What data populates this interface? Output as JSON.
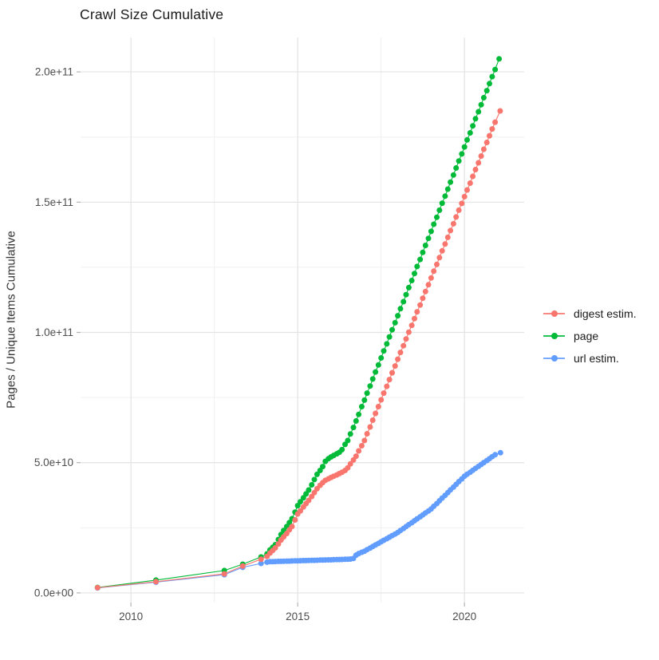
{
  "title": "Crawl Size Cumulative",
  "chart_data": {
    "type": "scatter",
    "title": "Crawl Size Cumulative",
    "xlabel": "",
    "ylabel": "Pages / Unique Items Cumulative",
    "values_unit": "billions (1e9) of pages / unique items",
    "grid": true,
    "legend_position": "right-center",
    "x_major_ticks": [
      2010,
      2015,
      2020
    ],
    "x_minor_ticks": [
      2012.5,
      2017.5
    ],
    "x_tick_labels": [
      "2010",
      "2015",
      "2020"
    ],
    "y_major_ticks_billions": [
      0,
      50,
      100,
      150,
      200
    ],
    "y_minor_ticks_billions": [
      25,
      75,
      125,
      175
    ],
    "y_tick_labels": [
      "0.0e+00",
      "5.0e+10",
      "1.0e+11",
      "1.5e+11",
      "2.0e+11"
    ],
    "xlim": [
      2008.49,
      2021.79
    ],
    "ylim_billions": [
      -3.7,
      213.2
    ],
    "colors": {
      "major_grid": "#e3e3e3",
      "minor_grid": "#f0f0f0",
      "tick": "#b3b3b3",
      "tick_label": "#4d4d4d",
      "title": "#1a1a1a"
    },
    "draw_order": [
      "url estim.",
      "page",
      "digest estim."
    ],
    "series": [
      {
        "name": "digest estim.",
        "color": "#F8766D",
        "points": [
          [
            2009.0,
            2.0
          ],
          [
            2010.75,
            4.3
          ],
          [
            2012.8,
            7.3
          ],
          [
            2013.35,
            10.3
          ],
          [
            2013.9,
            12.9
          ],
          [
            2014.08,
            14.0
          ],
          [
            2014.17,
            15.3
          ],
          [
            2014.25,
            16.3
          ],
          [
            2014.33,
            17.3
          ],
          [
            2014.42,
            18.8
          ],
          [
            2014.5,
            20.3
          ],
          [
            2014.58,
            21.5
          ],
          [
            2014.67,
            22.8
          ],
          [
            2014.75,
            24.2
          ],
          [
            2014.83,
            25.5
          ],
          [
            2014.92,
            28.0
          ],
          [
            2015.0,
            30.3
          ],
          [
            2015.08,
            31.5
          ],
          [
            2015.17,
            33.0
          ],
          [
            2015.25,
            34.3
          ],
          [
            2015.33,
            35.5
          ],
          [
            2015.42,
            37.0
          ],
          [
            2015.5,
            38.5
          ],
          [
            2015.58,
            40.0
          ],
          [
            2015.67,
            41.3
          ],
          [
            2015.75,
            42.3
          ],
          [
            2015.83,
            43.2
          ],
          [
            2015.92,
            43.8
          ],
          [
            2016.0,
            44.3
          ],
          [
            2016.08,
            44.8
          ],
          [
            2016.17,
            45.3
          ],
          [
            2016.25,
            45.8
          ],
          [
            2016.33,
            46.3
          ],
          [
            2016.42,
            47.0
          ],
          [
            2016.5,
            48.0
          ],
          [
            2016.58,
            49.5
          ],
          [
            2016.67,
            51.0
          ],
          [
            2016.75,
            52.5
          ],
          [
            2016.83,
            54.5
          ],
          [
            2016.92,
            56.5
          ],
          [
            2017.0,
            58.5
          ],
          [
            2017.08,
            61.1
          ],
          [
            2017.17,
            63.7
          ],
          [
            2017.25,
            66.3
          ],
          [
            2017.33,
            68.9
          ],
          [
            2017.42,
            71.5
          ],
          [
            2017.5,
            74.1
          ],
          [
            2017.58,
            76.7
          ],
          [
            2017.67,
            79.3
          ],
          [
            2017.75,
            81.9
          ],
          [
            2017.83,
            84.5
          ],
          [
            2017.92,
            87.1
          ],
          [
            2018.0,
            89.7
          ],
          [
            2018.08,
            92.3
          ],
          [
            2018.17,
            94.9
          ],
          [
            2018.25,
            97.5
          ],
          [
            2018.33,
            100.1
          ],
          [
            2018.42,
            102.7
          ],
          [
            2018.5,
            105.3
          ],
          [
            2018.58,
            107.9
          ],
          [
            2018.67,
            110.5
          ],
          [
            2018.75,
            113.1
          ],
          [
            2018.83,
            115.7
          ],
          [
            2018.92,
            118.3
          ],
          [
            2019.0,
            120.9
          ],
          [
            2019.08,
            123.5
          ],
          [
            2019.17,
            126.1
          ],
          [
            2019.25,
            128.7
          ],
          [
            2019.33,
            131.3
          ],
          [
            2019.42,
            133.9
          ],
          [
            2019.5,
            136.5
          ],
          [
            2019.58,
            139.1
          ],
          [
            2019.67,
            141.7
          ],
          [
            2019.75,
            144.3
          ],
          [
            2019.83,
            146.9
          ],
          [
            2019.92,
            149.5
          ],
          [
            2020.0,
            152.1
          ],
          [
            2020.08,
            154.7
          ],
          [
            2020.17,
            157.3
          ],
          [
            2020.25,
            159.9
          ],
          [
            2020.33,
            162.5
          ],
          [
            2020.42,
            165.1
          ],
          [
            2020.5,
            167.7
          ],
          [
            2020.58,
            170.3
          ],
          [
            2020.67,
            172.9
          ],
          [
            2020.75,
            175.5
          ],
          [
            2020.83,
            178.1
          ],
          [
            2020.92,
            180.7
          ],
          [
            2021.07,
            185.0
          ]
        ]
      },
      {
        "name": "page",
        "color": "#00BA38",
        "points": [
          [
            2009.0,
            2.1
          ],
          [
            2010.75,
            4.9
          ],
          [
            2012.8,
            8.6
          ],
          [
            2013.35,
            11.0
          ],
          [
            2013.9,
            13.8
          ],
          [
            2014.08,
            15.0
          ],
          [
            2014.17,
            16.5
          ],
          [
            2014.25,
            17.5
          ],
          [
            2014.33,
            18.5
          ],
          [
            2014.42,
            20.5
          ],
          [
            2014.5,
            22.4
          ],
          [
            2014.58,
            24.0
          ],
          [
            2014.67,
            25.5
          ],
          [
            2014.75,
            27.0
          ],
          [
            2014.83,
            28.5
          ],
          [
            2014.92,
            31.0
          ],
          [
            2015.0,
            33.5
          ],
          [
            2015.08,
            35.0
          ],
          [
            2015.17,
            36.5
          ],
          [
            2015.25,
            38.0
          ],
          [
            2015.33,
            39.5
          ],
          [
            2015.42,
            41.5
          ],
          [
            2015.5,
            43.5
          ],
          [
            2015.58,
            45.5
          ],
          [
            2015.67,
            47.0
          ],
          [
            2015.75,
            48.5
          ],
          [
            2015.83,
            50.5
          ],
          [
            2015.92,
            51.5
          ],
          [
            2016.0,
            52.2
          ],
          [
            2016.08,
            52.8
          ],
          [
            2016.17,
            53.4
          ],
          [
            2016.25,
            54.0
          ],
          [
            2016.33,
            55.0
          ],
          [
            2016.42,
            57.0
          ],
          [
            2016.5,
            58.5
          ],
          [
            2016.58,
            61.0
          ],
          [
            2016.67,
            63.5
          ],
          [
            2016.75,
            66.0
          ],
          [
            2016.83,
            68.5
          ],
          [
            2016.92,
            71.5
          ],
          [
            2017.0,
            74.0
          ],
          [
            2017.08,
            76.7
          ],
          [
            2017.17,
            79.4
          ],
          [
            2017.25,
            82.1
          ],
          [
            2017.33,
            84.8
          ],
          [
            2017.42,
            87.5
          ],
          [
            2017.5,
            90.2
          ],
          [
            2017.58,
            92.9
          ],
          [
            2017.67,
            95.6
          ],
          [
            2017.75,
            98.3
          ],
          [
            2017.83,
            101.0
          ],
          [
            2017.92,
            103.7
          ],
          [
            2018.0,
            106.4
          ],
          [
            2018.08,
            109.1
          ],
          [
            2018.17,
            111.8
          ],
          [
            2018.25,
            114.5
          ],
          [
            2018.33,
            117.2
          ],
          [
            2018.42,
            119.9
          ],
          [
            2018.5,
            122.6
          ],
          [
            2018.58,
            125.3
          ],
          [
            2018.67,
            128.0
          ],
          [
            2018.75,
            130.7
          ],
          [
            2018.83,
            133.4
          ],
          [
            2018.92,
            136.1
          ],
          [
            2019.0,
            138.8
          ],
          [
            2019.08,
            141.5
          ],
          [
            2019.17,
            144.2
          ],
          [
            2019.25,
            146.9
          ],
          [
            2019.33,
            149.6
          ],
          [
            2019.42,
            152.3
          ],
          [
            2019.5,
            155.0
          ],
          [
            2019.58,
            157.7
          ],
          [
            2019.67,
            160.4
          ],
          [
            2019.75,
            163.1
          ],
          [
            2019.83,
            165.8
          ],
          [
            2019.92,
            168.5
          ],
          [
            2020.0,
            171.2
          ],
          [
            2020.08,
            173.9
          ],
          [
            2020.17,
            176.6
          ],
          [
            2020.25,
            179.3
          ],
          [
            2020.33,
            182.0
          ],
          [
            2020.42,
            184.7
          ],
          [
            2020.5,
            187.4
          ],
          [
            2020.58,
            190.1
          ],
          [
            2020.67,
            192.8
          ],
          [
            2020.75,
            195.5
          ],
          [
            2020.83,
            198.2
          ],
          [
            2020.92,
            200.9
          ],
          [
            2021.04,
            205.0
          ]
        ]
      },
      {
        "name": "url estim.",
        "color": "#619CFF",
        "points": [
          [
            2009.0,
            1.9
          ],
          [
            2010.75,
            4.1
          ],
          [
            2012.8,
            7.0
          ],
          [
            2013.35,
            9.8
          ],
          [
            2013.9,
            11.3
          ],
          [
            2014.08,
            11.8
          ],
          [
            2014.17,
            12.0
          ],
          [
            2014.25,
            12.0
          ],
          [
            2014.33,
            12.05
          ],
          [
            2014.42,
            12.1
          ],
          [
            2014.5,
            12.1
          ],
          [
            2014.58,
            12.15
          ],
          [
            2014.67,
            12.2
          ],
          [
            2014.75,
            12.2
          ],
          [
            2014.83,
            12.25
          ],
          [
            2014.92,
            12.3
          ],
          [
            2015.0,
            12.3
          ],
          [
            2015.08,
            12.35
          ],
          [
            2015.17,
            12.4
          ],
          [
            2015.25,
            12.4
          ],
          [
            2015.33,
            12.45
          ],
          [
            2015.42,
            12.5
          ],
          [
            2015.5,
            12.5
          ],
          [
            2015.58,
            12.55
          ],
          [
            2015.67,
            12.6
          ],
          [
            2015.75,
            12.6
          ],
          [
            2015.83,
            12.65
          ],
          [
            2015.92,
            12.7
          ],
          [
            2016.0,
            12.7
          ],
          [
            2016.08,
            12.75
          ],
          [
            2016.17,
            12.8
          ],
          [
            2016.25,
            12.8
          ],
          [
            2016.33,
            12.85
          ],
          [
            2016.42,
            12.9
          ],
          [
            2016.5,
            12.95
          ],
          [
            2016.58,
            13.0
          ],
          [
            2016.67,
            13.2
          ],
          [
            2016.75,
            14.5
          ],
          [
            2016.83,
            15.1
          ],
          [
            2016.92,
            15.6
          ],
          [
            2017.0,
            16.0
          ],
          [
            2017.08,
            16.6
          ],
          [
            2017.17,
            17.2
          ],
          [
            2017.25,
            17.8
          ],
          [
            2017.33,
            18.4
          ],
          [
            2017.42,
            19.0
          ],
          [
            2017.5,
            19.6
          ],
          [
            2017.58,
            20.2
          ],
          [
            2017.67,
            20.8
          ],
          [
            2017.75,
            21.4
          ],
          [
            2017.83,
            22.0
          ],
          [
            2017.92,
            22.6
          ],
          [
            2018.0,
            23.2
          ],
          [
            2018.08,
            23.95
          ],
          [
            2018.17,
            24.7
          ],
          [
            2018.25,
            25.45
          ],
          [
            2018.33,
            26.2
          ],
          [
            2018.42,
            26.95
          ],
          [
            2018.5,
            27.7
          ],
          [
            2018.58,
            28.45
          ],
          [
            2018.67,
            29.2
          ],
          [
            2018.75,
            29.95
          ],
          [
            2018.83,
            30.7
          ],
          [
            2018.92,
            31.45
          ],
          [
            2019.0,
            32.2
          ],
          [
            2019.08,
            33.25
          ],
          [
            2019.17,
            34.3
          ],
          [
            2019.25,
            35.35
          ],
          [
            2019.33,
            36.4
          ],
          [
            2019.42,
            37.45
          ],
          [
            2019.5,
            38.5
          ],
          [
            2019.58,
            39.55
          ],
          [
            2019.67,
            40.6
          ],
          [
            2019.75,
            41.65
          ],
          [
            2019.83,
            42.7
          ],
          [
            2019.92,
            43.75
          ],
          [
            2020.0,
            44.8
          ],
          [
            2020.08,
            45.55
          ],
          [
            2020.17,
            46.3
          ],
          [
            2020.25,
            47.05
          ],
          [
            2020.33,
            47.8
          ],
          [
            2020.42,
            48.55
          ],
          [
            2020.5,
            49.3
          ],
          [
            2020.58,
            50.05
          ],
          [
            2020.67,
            50.8
          ],
          [
            2020.75,
            51.55
          ],
          [
            2020.83,
            52.3
          ],
          [
            2020.92,
            53.05
          ],
          [
            2021.08,
            53.8
          ]
        ]
      }
    ]
  },
  "legend": {
    "items": [
      {
        "label": "digest estim."
      },
      {
        "label": "page"
      },
      {
        "label": "url estim."
      }
    ]
  }
}
